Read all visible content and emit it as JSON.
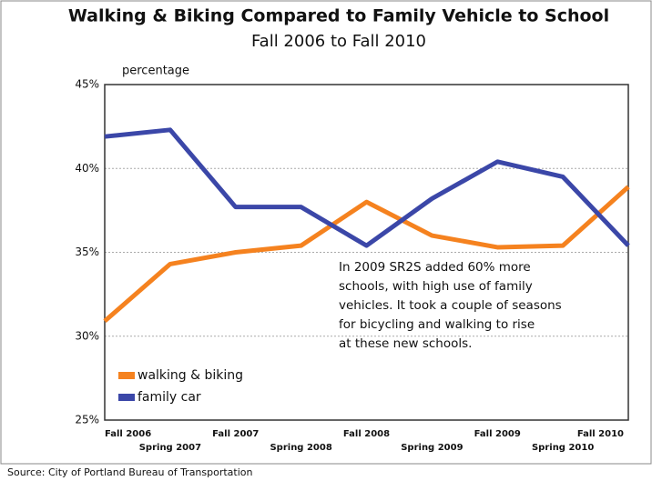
{
  "chart_data": {
    "type": "line",
    "title": "Walking & Biking Compared to Family Vehicle to School",
    "subtitle": "Fall 2006 to Fall 2010",
    "y_label": "percentage",
    "categories": [
      "Fall 2006",
      "Spring 2007",
      "Fall 2007",
      "Spring 2008",
      "Fall 2008",
      "Spring 2009",
      "Fall 2009",
      "Spring 2010",
      "Fall 2010"
    ],
    "series": [
      {
        "name": "walking & biking",
        "color": "#f5821f",
        "values": [
          30.9,
          34.3,
          35.0,
          35.4,
          38.0,
          36.0,
          35.3,
          35.4,
          38.9
        ]
      },
      {
        "name": "family car",
        "color": "#3b47a8",
        "values": [
          41.9,
          42.3,
          37.7,
          37.7,
          35.4,
          38.2,
          40.4,
          39.5,
          35.4
        ]
      }
    ],
    "ylim": [
      25,
      45
    ],
    "yticks": [
      {
        "value": 25,
        "label": "25%"
      },
      {
        "value": 30,
        "label": "30%"
      },
      {
        "value": 35,
        "label": "35%"
      },
      {
        "value": 40,
        "label": "40%"
      },
      {
        "value": 45,
        "label": "45%"
      }
    ],
    "grid": true,
    "legend": "lower left",
    "annotation": [
      "In 2009 SR2S added 60% more",
      "schools, with high use of family",
      "vehicles. It took a couple of seasons",
      "for bicycling and walking to rise",
      "at these new schools."
    ],
    "source": "Source: City of Portland Bureau of Transportation"
  }
}
